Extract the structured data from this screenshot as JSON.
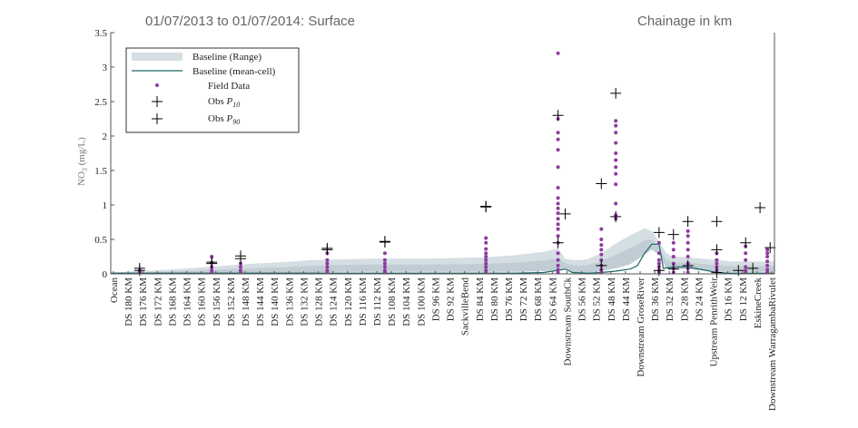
{
  "chart_data": {
    "type": "scatter",
    "title_left": "01/07/2013 to 01/07/2014: Surface",
    "title_right": "Chainage in km",
    "ylabel_main": "NO",
    "ylabel_sub": "3",
    "ylabel_unit": " (mg/L)",
    "ylim": [
      0,
      3.5
    ],
    "yticks": [
      "0",
      "0.5",
      "1",
      "1.5",
      "2",
      "2.5",
      "3",
      "3.5"
    ],
    "categories": [
      "Ocean",
      "DS 180 KM",
      "DS 176 KM",
      "DS 172 KM",
      "DS 168 KM",
      "DS 164 KM",
      "DS 160 KM",
      "DS 156 KM",
      "DS 152 KM",
      "DS 148 KM",
      "DS 144 KM",
      "DS 140 KM",
      "DS 136 KM",
      "DS 132 KM",
      "DS 128 KM",
      "DS 124 KM",
      "DS 120 KM",
      "DS 116 KM",
      "DS 112 KM",
      "DS 108 KM",
      "DS 104 KM",
      "DS 100 KM",
      "DS 96 KM",
      "DS 92 KM",
      "SackvilleBend",
      "DS 84 KM",
      "DS 80 KM",
      "DS 76 KM",
      "DS 72 KM",
      "DS 68 KM",
      "DS 64 KM",
      "Downstream SouthCk",
      "DS 56 KM",
      "DS 52 KM",
      "DS 48 KM",
      "DS 44 KM",
      "Downstream GrosеRiver",
      "DS 36 KM",
      "DS 32 KM",
      "DS 28 KM",
      "DS 24 KM",
      "Upstream PenrithWeir",
      "DS 16 KM",
      "DS 12 KM",
      "EskineCreek",
      "Downstream WarragambaRivulet"
    ],
    "legend": {
      "range": "Baseline (Range)",
      "mean": "Baseline (mean-cell)",
      "field": "Field Data",
      "p10_prefix": "Obs ",
      "p10_sym": "P",
      "p10_sub": "10",
      "p90_prefix": "Obs ",
      "p90_sym": "P",
      "p90_sub": "90"
    },
    "x_range": [
      0,
      46
    ],
    "baseline_range": {
      "x": [
        0,
        2,
        4,
        6,
        8,
        10,
        12,
        14,
        16,
        18,
        20,
        22,
        24,
        26,
        28,
        30,
        31,
        31.5,
        32,
        32.5,
        33,
        34,
        35,
        36,
        37,
        37.5,
        38,
        38.5,
        39,
        40,
        41,
        42,
        43,
        44,
        45,
        46
      ],
      "lower": [
        0,
        0,
        0,
        0,
        0,
        0,
        0.01,
        0.02,
        0.03,
        0.03,
        0.03,
        0.03,
        0.03,
        0.03,
        0.03,
        0.04,
        0.05,
        0.08,
        0.03,
        0.02,
        0.02,
        0.04,
        0.08,
        0.14,
        0.28,
        0.35,
        0.28,
        0.08,
        0.06,
        0.07,
        0.05,
        0.03,
        0.03,
        0.03,
        0.03,
        0.03
      ],
      "upper": [
        0.02,
        0.04,
        0.06,
        0.09,
        0.12,
        0.15,
        0.17,
        0.2,
        0.21,
        0.22,
        0.22,
        0.22,
        0.23,
        0.24,
        0.27,
        0.32,
        0.37,
        0.22,
        0.2,
        0.2,
        0.21,
        0.3,
        0.44,
        0.56,
        0.66,
        0.62,
        0.47,
        0.3,
        0.25,
        0.24,
        0.22,
        0.2,
        0.18,
        0.18,
        0.18,
        0.18
      ]
    },
    "baseline_mean": {
      "x": [
        0,
        4,
        8,
        12,
        16,
        20,
        24,
        28,
        30,
        31,
        31.5,
        32,
        33,
        34,
        35,
        36,
        36.5,
        37,
        37.5,
        38,
        38.3,
        39,
        40,
        41,
        42,
        43,
        44,
        45,
        46
      ],
      "y": [
        0.01,
        0.01,
        0.01,
        0.01,
        0.01,
        0.01,
        0.01,
        0.01,
        0.02,
        0.05,
        0.07,
        0.02,
        0.01,
        0.02,
        0.04,
        0.07,
        0.12,
        0.3,
        0.43,
        0.43,
        0.08,
        0.1,
        0.1,
        0.06,
        0.02,
        0.01,
        0.01,
        0.01,
        0.01
      ]
    },
    "field_data": [
      {
        "x": 2,
        "values": [
          0.02,
          0.05
        ]
      },
      {
        "x": 7,
        "values": [
          0.02,
          0.05,
          0.1,
          0.16,
          0.25
        ]
      },
      {
        "x": 9,
        "values": [
          0.02,
          0.05,
          0.1,
          0.15
        ]
      },
      {
        "x": 15,
        "values": [
          0.02,
          0.05,
          0.1,
          0.15,
          0.2,
          0.3
        ]
      },
      {
        "x": 19,
        "values": [
          0.02,
          0.05,
          0.1,
          0.15,
          0.2,
          0.3
        ]
      },
      {
        "x": 26,
        "values": [
          0.02,
          0.05,
          0.1,
          0.15,
          0.2,
          0.25,
          0.3,
          0.36,
          0.45,
          0.52
        ]
      },
      {
        "x": 31,
        "values": [
          0.02,
          0.06,
          0.12,
          0.2,
          0.3,
          0.45,
          0.55,
          0.65,
          0.72,
          0.8,
          0.88,
          0.95,
          1.02,
          1.1,
          1.25,
          1.55,
          1.8,
          1.95,
          2.05,
          2.25,
          3.2
        ]
      },
      {
        "x": 34,
        "values": [
          0.02,
          0.06,
          0.12,
          0.2,
          0.28,
          0.35,
          0.42,
          0.5,
          0.65
        ]
      },
      {
        "x": 35,
        "values": [
          0.8,
          0.85,
          1.02,
          1.3,
          1.45,
          1.55,
          1.65,
          1.75,
          1.9,
          2.05,
          2.15,
          2.22
        ]
      },
      {
        "x": 38,
        "values": [
          0.02,
          0.05,
          0.1,
          0.15,
          0.2,
          0.3,
          0.45
        ]
      },
      {
        "x": 39,
        "values": [
          0.02,
          0.08,
          0.15,
          0.25,
          0.35,
          0.45
        ]
      },
      {
        "x": 40,
        "values": [
          0.02,
          0.08,
          0.15,
          0.25,
          0.35,
          0.45,
          0.55,
          0.62
        ]
      },
      {
        "x": 42,
        "values": [
          0.02,
          0.05,
          0.1,
          0.15,
          0.2,
          0.3
        ]
      },
      {
        "x": 44,
        "values": [
          0.02,
          0.05,
          0.1,
          0.2,
          0.3,
          0.4
        ]
      },
      {
        "x": 45.5,
        "values": [
          0.02,
          0.06,
          0.12,
          0.18,
          0.25,
          0.3,
          0.35
        ]
      }
    ],
    "obs_p10": [
      {
        "x": 2,
        "y": 0.05
      },
      {
        "x": 7,
        "y": 0.15
      },
      {
        "x": 9,
        "y": 0.22
      },
      {
        "x": 15,
        "y": 0.35
      },
      {
        "x": 19,
        "y": 0.46
      },
      {
        "x": 26,
        "y": 0.97
      },
      {
        "x": 31,
        "y": 0.45
      },
      {
        "x": 31.5,
        "y": 0.87
      },
      {
        "x": 34,
        "y": 0.12
      },
      {
        "x": 35,
        "y": 0.83
      },
      {
        "x": 38,
        "y": 0.05
      },
      {
        "x": 39,
        "y": 0.07
      },
      {
        "x": 40,
        "y": 0.12
      },
      {
        "x": 42,
        "y": 0.02
      },
      {
        "x": 43.5,
        "y": 0.05
      },
      {
        "x": 44.5,
        "y": 0.08
      }
    ],
    "obs_p90": [
      {
        "x": 2,
        "y": 0.08
      },
      {
        "x": 7,
        "y": 0.17
      },
      {
        "x": 9,
        "y": 0.26
      },
      {
        "x": 15,
        "y": 0.37
      },
      {
        "x": 19,
        "y": 0.47
      },
      {
        "x": 26,
        "y": 0.98
      },
      {
        "x": 31,
        "y": 2.3
      },
      {
        "x": 34,
        "y": 1.31
      },
      {
        "x": 35,
        "y": 2.62
      },
      {
        "x": 38,
        "y": 0.6
      },
      {
        "x": 39,
        "y": 0.57
      },
      {
        "x": 40,
        "y": 0.76
      },
      {
        "x": 42,
        "y": 0.76
      },
      {
        "x": 42,
        "y": 0.35
      },
      {
        "x": 44,
        "y": 0.45
      },
      {
        "x": 45,
        "y": 0.96
      },
      {
        "x": 45.7,
        "y": 0.38
      }
    ],
    "colors": {
      "range_fill": "#d5dee3",
      "range_fill_inner": "#c0cdd4",
      "mean_line": "#1a6b66",
      "field_points": "#8e3a9e",
      "obs_markers": "#000000",
      "axis": "#555555"
    },
    "legend_position": "top-left",
    "grid": false
  }
}
